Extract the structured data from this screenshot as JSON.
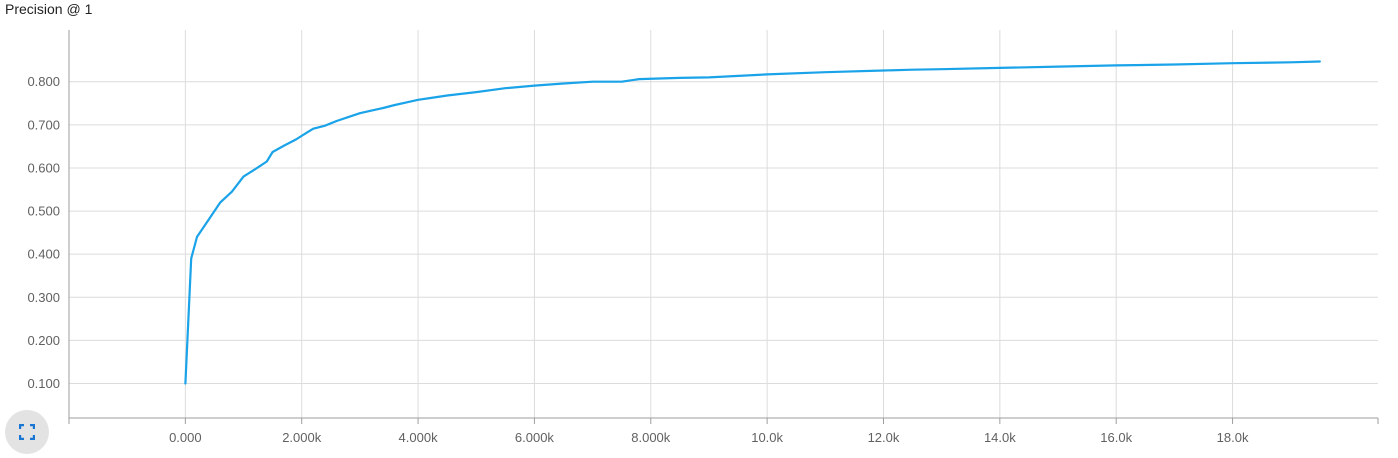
{
  "title": "Precision @ 1",
  "icons": {
    "expand": "fullscreen-icon"
  },
  "colors": {
    "line": "#1aa3e8",
    "grid": "#dcdcdc",
    "axis": "#9e9e9e",
    "button_bg": "#e3e3e3",
    "button_icon": "#1976d2"
  },
  "chart_data": {
    "type": "line",
    "title": "Precision @ 1",
    "xlabel": "",
    "ylabel": "",
    "xlim": [
      -2000,
      20500
    ],
    "ylim": [
      0.02,
      0.92
    ],
    "grid": true,
    "x_ticks": [
      0,
      2000,
      4000,
      6000,
      8000,
      10000,
      12000,
      14000,
      16000,
      18000
    ],
    "x_tick_labels": [
      "0.000",
      "2.000k",
      "4.000k",
      "6.000k",
      "8.000k",
      "10.0k",
      "12.0k",
      "14.0k",
      "16.0k",
      "18.0k"
    ],
    "y_ticks": [
      0.1,
      0.2,
      0.3,
      0.4,
      0.5,
      0.6,
      0.7,
      0.8
    ],
    "y_tick_labels": [
      "0.100",
      "0.200",
      "0.300",
      "0.400",
      "0.500",
      "0.600",
      "0.700",
      "0.800"
    ],
    "series": [
      {
        "x": [
          0,
          100,
          200,
          400,
          600,
          800,
          1000,
          1200,
          1400,
          1500,
          1700,
          1900,
          2100,
          2200,
          2400,
          2600,
          2800,
          3000,
          3200,
          3400,
          3600,
          3800,
          4000,
          4200,
          4500,
          5000,
          5500,
          6000,
          6500,
          7000,
          7500,
          7800,
          8500,
          9000,
          10000,
          11000,
          12000,
          12500,
          13000,
          14000,
          15000,
          16000,
          17000,
          18000,
          19000,
          19500
        ],
        "y": [
          0.1,
          0.39,
          0.44,
          0.48,
          0.52,
          0.545,
          0.58,
          0.597,
          0.615,
          0.637,
          0.652,
          0.666,
          0.683,
          0.691,
          0.698,
          0.709,
          0.718,
          0.727,
          0.733,
          0.739,
          0.746,
          0.752,
          0.758,
          0.762,
          0.768,
          0.776,
          0.785,
          0.791,
          0.796,
          0.8,
          0.8,
          0.806,
          0.809,
          0.81,
          0.817,
          0.822,
          0.826,
          0.828,
          0.829,
          0.832,
          0.835,
          0.838,
          0.84,
          0.843,
          0.845,
          0.847
        ]
      }
    ]
  }
}
